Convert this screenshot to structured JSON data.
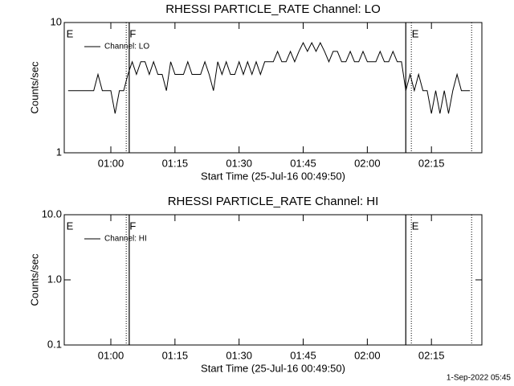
{
  "chart_data": [
    {
      "type": "line",
      "title": "RHESSI PARTICLE_RATE Channel: LO",
      "x_label": "Start Time (25-Jul-16 00:49:50)",
      "y_label": "Counts/sec",
      "log_y": true,
      "ylim": [
        1,
        10
      ],
      "yticks": [
        1,
        10
      ],
      "xlim": [
        49.1,
        146.8
      ],
      "xticks": [
        {
          "value": 60,
          "label": "01:00"
        },
        {
          "value": 75,
          "label": "01:15"
        },
        {
          "value": 90,
          "label": "01:30"
        },
        {
          "value": 105,
          "label": "01:45"
        },
        {
          "value": 120,
          "label": "02:00"
        },
        {
          "value": 135,
          "label": "02:15"
        }
      ],
      "series": [
        {
          "name": "Channel: LO",
          "color": "#000000",
          "x": [
            50,
            51,
            52,
            53,
            54,
            55,
            56,
            57,
            58,
            59,
            60,
            61,
            62,
            63,
            64,
            65,
            66,
            67,
            68,
            69,
            70,
            71,
            72,
            73,
            74,
            75,
            76,
            77,
            78,
            79,
            80,
            81,
            82,
            83,
            84,
            85,
            86,
            87,
            88,
            89,
            90,
            91,
            92,
            93,
            94,
            95,
            96,
            97,
            98,
            99,
            100,
            101,
            102,
            103,
            104,
            105,
            106,
            107,
            108,
            109,
            110,
            111,
            112,
            113,
            114,
            115,
            116,
            117,
            118,
            119,
            120,
            121,
            122,
            123,
            124,
            125,
            126,
            127,
            128,
            129,
            130,
            131,
            132,
            133,
            134,
            135,
            136,
            137,
            138,
            139,
            140,
            141,
            142,
            143,
            144
          ],
          "values": [
            3,
            3,
            3,
            3,
            3,
            3,
            3,
            4,
            3,
            3,
            3,
            2,
            3,
            3,
            4,
            5,
            4,
            5,
            5,
            4,
            5,
            4,
            4,
            3,
            5,
            4,
            4,
            4,
            5,
            4,
            4,
            4,
            5,
            4,
            3,
            5,
            4,
            5,
            4,
            4,
            5,
            4,
            5,
            4,
            5,
            4,
            5,
            5,
            5,
            6,
            5,
            5,
            6,
            5,
            6,
            7,
            6,
            7,
            6,
            7,
            6,
            5,
            6,
            6,
            5,
            5,
            6,
            5,
            5,
            6,
            5,
            5,
            5,
            6,
            5,
            5,
            6,
            5,
            5,
            3,
            4,
            3,
            4,
            3,
            3,
            2,
            3,
            2,
            3,
            2,
            3,
            4,
            3,
            3,
            3
          ]
        }
      ],
      "flags": [
        {
          "text": "E",
          "x": 49.6
        },
        {
          "text": "F",
          "x": 64.4
        },
        {
          "text": "E",
          "x": 130.4
        }
      ],
      "solid_lines": [
        64.3,
        129.0
      ],
      "dotted_lines": [
        63.6,
        130.3,
        144.4
      ]
    },
    {
      "type": "line",
      "title": "RHESSI PARTICLE_RATE Channel: HI",
      "x_label": "Start Time (25-Jul-16 00:49:50)",
      "y_label": "Counts/sec",
      "log_y": true,
      "ylim": [
        0.1,
        10
      ],
      "yticks": [
        {
          "value": 0.1,
          "label": "0.1"
        },
        {
          "value": 1,
          "label": "1.0"
        },
        {
          "value": 10,
          "label": "10.0"
        }
      ],
      "xlim": [
        49.1,
        146.8
      ],
      "xticks": [
        {
          "value": 60,
          "label": "01:00"
        },
        {
          "value": 75,
          "label": "01:15"
        },
        {
          "value": 90,
          "label": "01:30"
        },
        {
          "value": 105,
          "label": "01:45"
        },
        {
          "value": 120,
          "label": "02:00"
        },
        {
          "value": 135,
          "label": "02:15"
        }
      ],
      "series": [
        {
          "name": "Channel: HI",
          "color": "#000000",
          "x": [],
          "values": []
        }
      ],
      "flags": [
        {
          "text": "E",
          "x": 49.6
        },
        {
          "text": "F",
          "x": 64.4
        },
        {
          "text": "E",
          "x": 130.4
        }
      ],
      "solid_lines": [
        64.3,
        129.0
      ],
      "dotted_lines": [
        63.6,
        130.3,
        144.4
      ]
    }
  ],
  "footer": "1-Sep-2022 05:45"
}
